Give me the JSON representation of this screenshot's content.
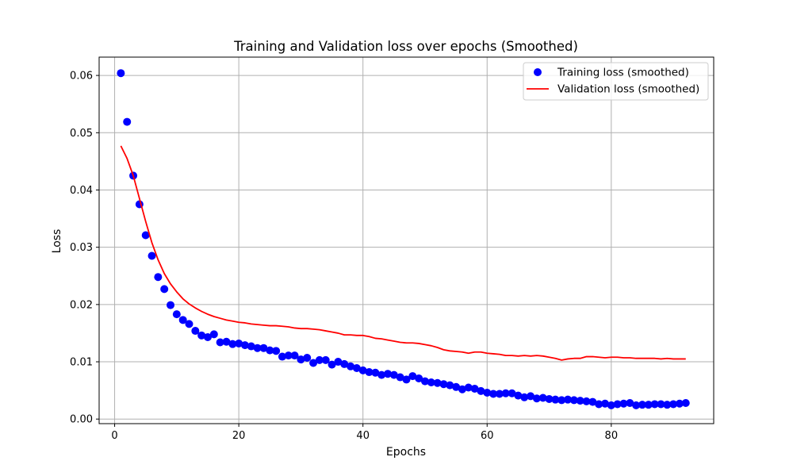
{
  "chart_data": {
    "type": "scatter",
    "title": "Training and Validation loss over epochs (Smoothed)",
    "xlabel": "Epochs",
    "ylabel": "Loss",
    "xlim": [
      -2.5,
      96.5
    ],
    "ylim": [
      -0.0008,
      0.0632
    ],
    "xticks": [
      0,
      20,
      40,
      60,
      80
    ],
    "xtick_labels": [
      "0",
      "20",
      "40",
      "60",
      "80"
    ],
    "yticks": [
      0,
      0.01,
      0.02,
      0.03,
      0.04,
      0.05,
      0.06
    ],
    "ytick_labels": [
      "0.00",
      "0.01",
      "0.02",
      "0.03",
      "0.04",
      "0.05",
      "0.06"
    ],
    "grid": true,
    "legend_position": "upper right",
    "series": [
      {
        "name": "Training loss (smoothed)",
        "kind": "scatter",
        "color": "#0000ff",
        "x": [
          1,
          2,
          3,
          4,
          5,
          6,
          7,
          8,
          9,
          10,
          11,
          12,
          13,
          14,
          15,
          16,
          17,
          18,
          19,
          20,
          21,
          22,
          23,
          24,
          25,
          26,
          27,
          28,
          29,
          30,
          31,
          32,
          33,
          34,
          35,
          36,
          37,
          38,
          39,
          40,
          41,
          42,
          43,
          44,
          45,
          46,
          47,
          48,
          49,
          50,
          51,
          52,
          53,
          54,
          55,
          56,
          57,
          58,
          59,
          60,
          61,
          62,
          63,
          64,
          65,
          66,
          67,
          68,
          69,
          70,
          71,
          72,
          73,
          74,
          75,
          76,
          77,
          78,
          79,
          80,
          81,
          82,
          83,
          84,
          85,
          86,
          87,
          88,
          89,
          90,
          91,
          92
        ],
        "y": [
          0.0604,
          0.0519,
          0.0425,
          0.0375,
          0.0321,
          0.0285,
          0.0248,
          0.0227,
          0.0199,
          0.0183,
          0.0173,
          0.0166,
          0.0154,
          0.0146,
          0.0143,
          0.0148,
          0.0134,
          0.0135,
          0.0131,
          0.0132,
          0.0129,
          0.0127,
          0.0124,
          0.0124,
          0.012,
          0.0119,
          0.0109,
          0.0111,
          0.0111,
          0.0104,
          0.0107,
          0.0098,
          0.0103,
          0.0103,
          0.0095,
          0.01,
          0.0096,
          0.0092,
          0.0089,
          0.0085,
          0.0082,
          0.0081,
          0.0077,
          0.0079,
          0.0077,
          0.0073,
          0.0069,
          0.0075,
          0.0071,
          0.0066,
          0.0064,
          0.0063,
          0.0061,
          0.0059,
          0.0056,
          0.0052,
          0.0055,
          0.0053,
          0.0049,
          0.0046,
          0.0044,
          0.0044,
          0.0045,
          0.0045,
          0.0041,
          0.0038,
          0.004,
          0.0036,
          0.0037,
          0.0035,
          0.0034,
          0.0033,
          0.0034,
          0.0033,
          0.0032,
          0.0031,
          0.003,
          0.0026,
          0.0027,
          0.0024,
          0.0026,
          0.0027,
          0.0028,
          0.0024,
          0.0025,
          0.0025,
          0.0026,
          0.0026,
          0.0025,
          0.0026,
          0.0027,
          0.0028
        ]
      },
      {
        "name": "Validation loss (smoothed)",
        "kind": "line",
        "color": "#ff0000",
        "x": [
          1,
          2,
          3,
          4,
          5,
          6,
          7,
          8,
          9,
          10,
          11,
          12,
          13,
          14,
          15,
          16,
          17,
          18,
          19,
          20,
          21,
          22,
          23,
          24,
          25,
          26,
          27,
          28,
          29,
          30,
          31,
          32,
          33,
          34,
          35,
          36,
          37,
          38,
          39,
          40,
          41,
          42,
          43,
          44,
          45,
          46,
          47,
          48,
          49,
          50,
          51,
          52,
          53,
          54,
          55,
          56,
          57,
          58,
          59,
          60,
          61,
          62,
          63,
          64,
          65,
          66,
          67,
          68,
          69,
          70,
          71,
          72,
          73,
          74,
          75,
          76,
          77,
          78,
          79,
          80,
          81,
          82,
          83,
          84,
          85,
          86,
          87,
          88,
          89,
          90,
          91,
          92
        ],
        "y": [
          0.0477,
          0.0455,
          0.0425,
          0.0385,
          0.0345,
          0.0308,
          0.0278,
          0.0254,
          0.0236,
          0.0222,
          0.021,
          0.0201,
          0.0194,
          0.0188,
          0.0183,
          0.0179,
          0.0176,
          0.0173,
          0.0171,
          0.0169,
          0.0168,
          0.0166,
          0.0165,
          0.0164,
          0.0163,
          0.0163,
          0.0162,
          0.0161,
          0.0159,
          0.0158,
          0.0158,
          0.0157,
          0.0156,
          0.0154,
          0.0152,
          0.015,
          0.0147,
          0.0147,
          0.0146,
          0.0146,
          0.0144,
          0.0141,
          0.014,
          0.0138,
          0.0136,
          0.0134,
          0.0133,
          0.0133,
          0.0132,
          0.013,
          0.0128,
          0.0125,
          0.0121,
          0.0119,
          0.0118,
          0.0117,
          0.0115,
          0.0117,
          0.0117,
          0.0115,
          0.0114,
          0.0113,
          0.0111,
          0.0111,
          0.011,
          0.0111,
          0.011,
          0.0111,
          0.011,
          0.0108,
          0.0106,
          0.0103,
          0.0105,
          0.0106,
          0.0106,
          0.0109,
          0.0109,
          0.0108,
          0.0107,
          0.0108,
          0.0108,
          0.0107,
          0.0107,
          0.0106,
          0.0106,
          0.0106,
          0.0106,
          0.0105,
          0.0106,
          0.0105,
          0.0105,
          0.0105
        ]
      }
    ]
  }
}
